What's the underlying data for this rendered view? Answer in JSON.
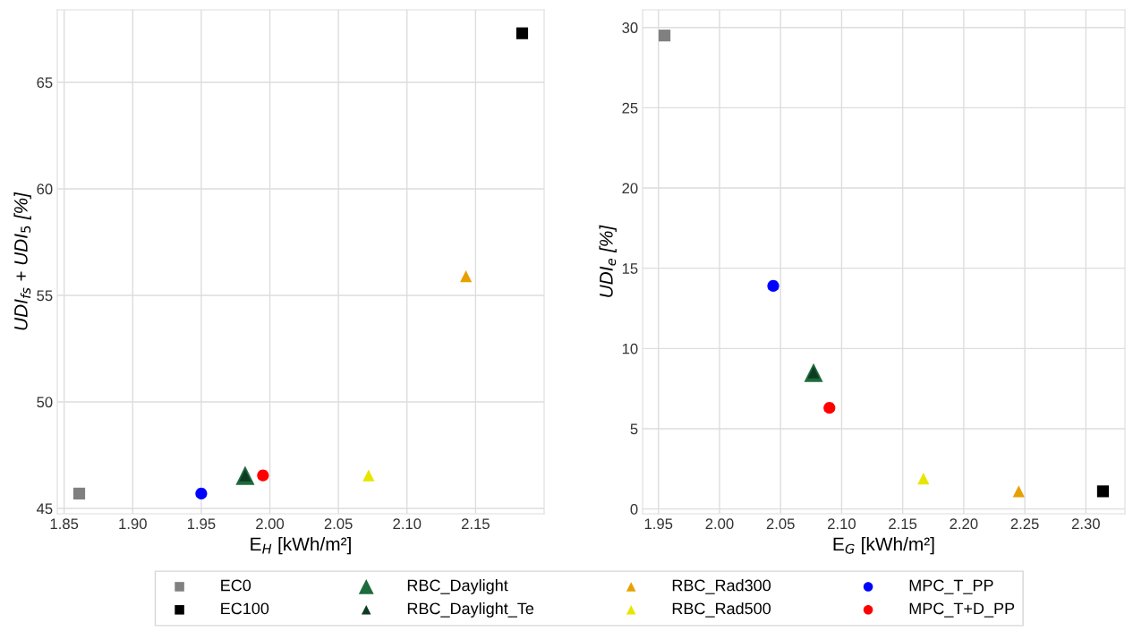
{
  "chart_data": [
    {
      "type": "scatter",
      "xlabel": "E$_{H}$ [kWh/m²]",
      "ylabel": "UDI$_{fs}$ + UDI$_{5}$ [%]",
      "xlim": [
        1.845,
        2.2
      ],
      "ylim": [
        44.75,
        68.4
      ],
      "xticks": [
        1.85,
        {
          "value": 1.9,
          "label": "1.90"
        },
        1.95,
        {
          "value": 2.0,
          "label": "2.00"
        },
        2.05,
        {
          "value": 2.1,
          "label": "2.10"
        },
        2.15
      ],
      "yticks": [
        45,
        50,
        55,
        60,
        65
      ],
      "grid": true,
      "legend": "bottom",
      "series": [
        {
          "name": "EC0",
          "color": "#808080",
          "marker": "square",
          "x": [
            1.861
          ],
          "values": [
            45.7
          ]
        },
        {
          "name": "EC100",
          "color": "#000000",
          "marker": "square",
          "x": [
            2.184
          ],
          "values": [
            67.3
          ]
        },
        {
          "name": "RBC_Daylight",
          "color": "#1e6b3c",
          "marker": "triangle",
          "x": [
            1.982
          ],
          "values": [
            46.55
          ]
        },
        {
          "name": "RBC_Daylight_Te",
          "color": "#0d3b22",
          "marker": "triangle",
          "x": [
            1.982
          ],
          "values": [
            46.55
          ]
        },
        {
          "name": "RBC_Rad300",
          "color": "#e6a000",
          "marker": "triangle",
          "x": [
            2.143
          ],
          "values": [
            55.9
          ]
        },
        {
          "name": "RBC_Rad500",
          "color": "#e6e600",
          "marker": "triangle",
          "x": [
            2.072
          ],
          "values": [
            46.55
          ]
        },
        {
          "name": "MPC_T_PP",
          "color": "#0000ff",
          "marker": "circle",
          "x": [
            1.95
          ],
          "values": [
            45.7
          ]
        },
        {
          "name": "MPC_T+D_PP",
          "color": "#ff0000",
          "marker": "circle",
          "x": [
            1.995
          ],
          "values": [
            46.55
          ]
        }
      ]
    },
    {
      "type": "scatter",
      "xlabel": "E$_{G}$ [kWh/m²]",
      "ylabel": "UDI$_{e}$ [%]",
      "xlim": [
        1.937,
        2.332
      ],
      "ylim": [
        -0.3,
        31.1
      ],
      "xticks": [
        1.95,
        {
          "value": 2.0,
          "label": "2.00"
        },
        2.05,
        {
          "value": 2.1,
          "label": "2.10"
        },
        2.15,
        {
          "value": 2.2,
          "label": "2.20"
        },
        2.25,
        {
          "value": 2.3,
          "label": "2.30"
        }
      ],
      "yticks": [
        0,
        5,
        10,
        15,
        20,
        25,
        30
      ],
      "grid": true,
      "series": [
        {
          "color": "#808080",
          "marker": "square",
          "x": [
            1.955
          ],
          "values": [
            29.5
          ]
        },
        {
          "color": "#000000",
          "marker": "square",
          "x": [
            2.314
          ],
          "values": [
            1.1
          ]
        },
        {
          "color": "#1e6b3c",
          "marker": "triangle",
          "x": [
            2.077
          ],
          "values": [
            8.5
          ]
        },
        {
          "color": "#0d3b22",
          "marker": "triangle",
          "x": [
            2.077
          ],
          "values": [
            8.5
          ]
        },
        {
          "color": "#e6a000",
          "marker": "triangle",
          "x": [
            2.245
          ],
          "values": [
            1.1
          ]
        },
        {
          "color": "#e6e600",
          "marker": "triangle",
          "x": [
            2.167
          ],
          "values": [
            1.9
          ]
        },
        {
          "color": "#0000ff",
          "marker": "circle",
          "x": [
            2.044
          ],
          "values": [
            13.9
          ]
        },
        {
          "color": "#ff0000",
          "marker": "circle",
          "x": [
            2.09
          ],
          "values": [
            6.3
          ]
        }
      ]
    }
  ]
}
